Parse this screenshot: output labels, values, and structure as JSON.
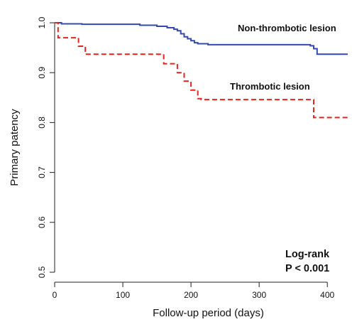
{
  "chart_data": {
    "type": "line",
    "title": "",
    "xlabel": "Follow-up period (days)",
    "ylabel": "Primary patency",
    "xlim": [
      0,
      430
    ],
    "ylim": [
      0.48,
      1.02
    ],
    "x_ticks": [
      0,
      100,
      200,
      300,
      400
    ],
    "y_ticks": [
      0.5,
      0.6,
      0.7,
      0.8,
      0.9,
      1.0
    ],
    "x_tick_labels": [
      "0",
      "100",
      "200",
      "300",
      "400"
    ],
    "y_tick_labels": [
      "0.5",
      "0.6",
      "0.7",
      "0.8",
      "0.9",
      "1.0"
    ],
    "grid": false,
    "step": true,
    "series": [
      {
        "name": "Non-thrombotic lesion",
        "color": "#3348b0",
        "line_style": "solid",
        "x": [
          0,
          10,
          40,
          125,
          150,
          165,
          175,
          180,
          185,
          190,
          195,
          200,
          205,
          210,
          225,
          375,
          380,
          385,
          430
        ],
        "y": [
          1.0,
          0.998,
          0.997,
          0.995,
          0.993,
          0.99,
          0.987,
          0.984,
          0.978,
          0.972,
          0.968,
          0.964,
          0.96,
          0.958,
          0.956,
          0.954,
          0.948,
          0.937,
          0.937
        ]
      },
      {
        "name": "Thrombotic lesion",
        "color": "#e8221c",
        "line_style": "dashed",
        "x": [
          0,
          5,
          35,
          45,
          160,
          180,
          190,
          200,
          210,
          215,
          380,
          430
        ],
        "y": [
          1.0,
          0.97,
          0.953,
          0.937,
          0.918,
          0.9,
          0.883,
          0.865,
          0.848,
          0.846,
          0.81,
          0.81
        ]
      }
    ],
    "annotations": {
      "stat_line1": "Log-rank",
      "stat_line2": "P < 0.001"
    }
  }
}
